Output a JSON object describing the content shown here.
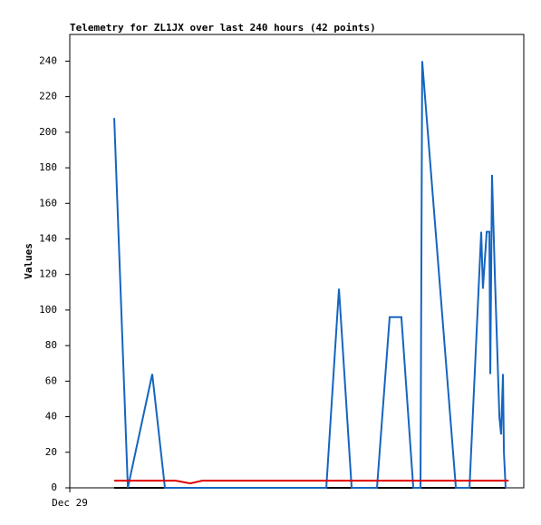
{
  "chart_data": {
    "type": "line",
    "title": "Telemetry for ZL1JX over last 240 hours (42 points)",
    "y_label": "Values",
    "xlim": [
      0,
      240
    ],
    "xticks": [
      {
        "value": 0,
        "label": "Dec 29"
      }
    ],
    "ylim": [
      0,
      255
    ],
    "yticks": [
      0,
      20,
      40,
      60,
      80,
      100,
      120,
      140,
      160,
      180,
      200,
      220,
      240
    ],
    "grid": false,
    "series": [
      {
        "color": "#000000",
        "x": [
          23.5,
          230.4
        ],
        "values": [
          0,
          0
        ]
      },
      {
        "color": "#1565c0",
        "x": [
          23.5,
          30.7,
          43.6,
          50.3,
          135.6,
          142.3,
          149,
          162.4,
          169.1,
          175.3,
          181.6,
          185.4,
          186.3,
          204.1,
          211.3,
          217.5,
          218.4,
          220.4,
          221.8,
          222.3,
          223.2,
          224.7,
          227.1,
          228,
          229,
          229.5,
          230.4
        ],
        "values": [
          208,
          0,
          64,
          0,
          0,
          112,
          0,
          0,
          96,
          96,
          0,
          0,
          240,
          0,
          0,
          144,
          112,
          144,
          144,
          64,
          176,
          120,
          40,
          30,
          64,
          20,
          0
        ]
      },
      {
        "color": "#e00000",
        "x": [
          23.5,
          56,
          63.7,
          70,
          232
        ],
        "values": [
          4,
          4,
          2.5,
          4,
          4
        ]
      }
    ]
  }
}
